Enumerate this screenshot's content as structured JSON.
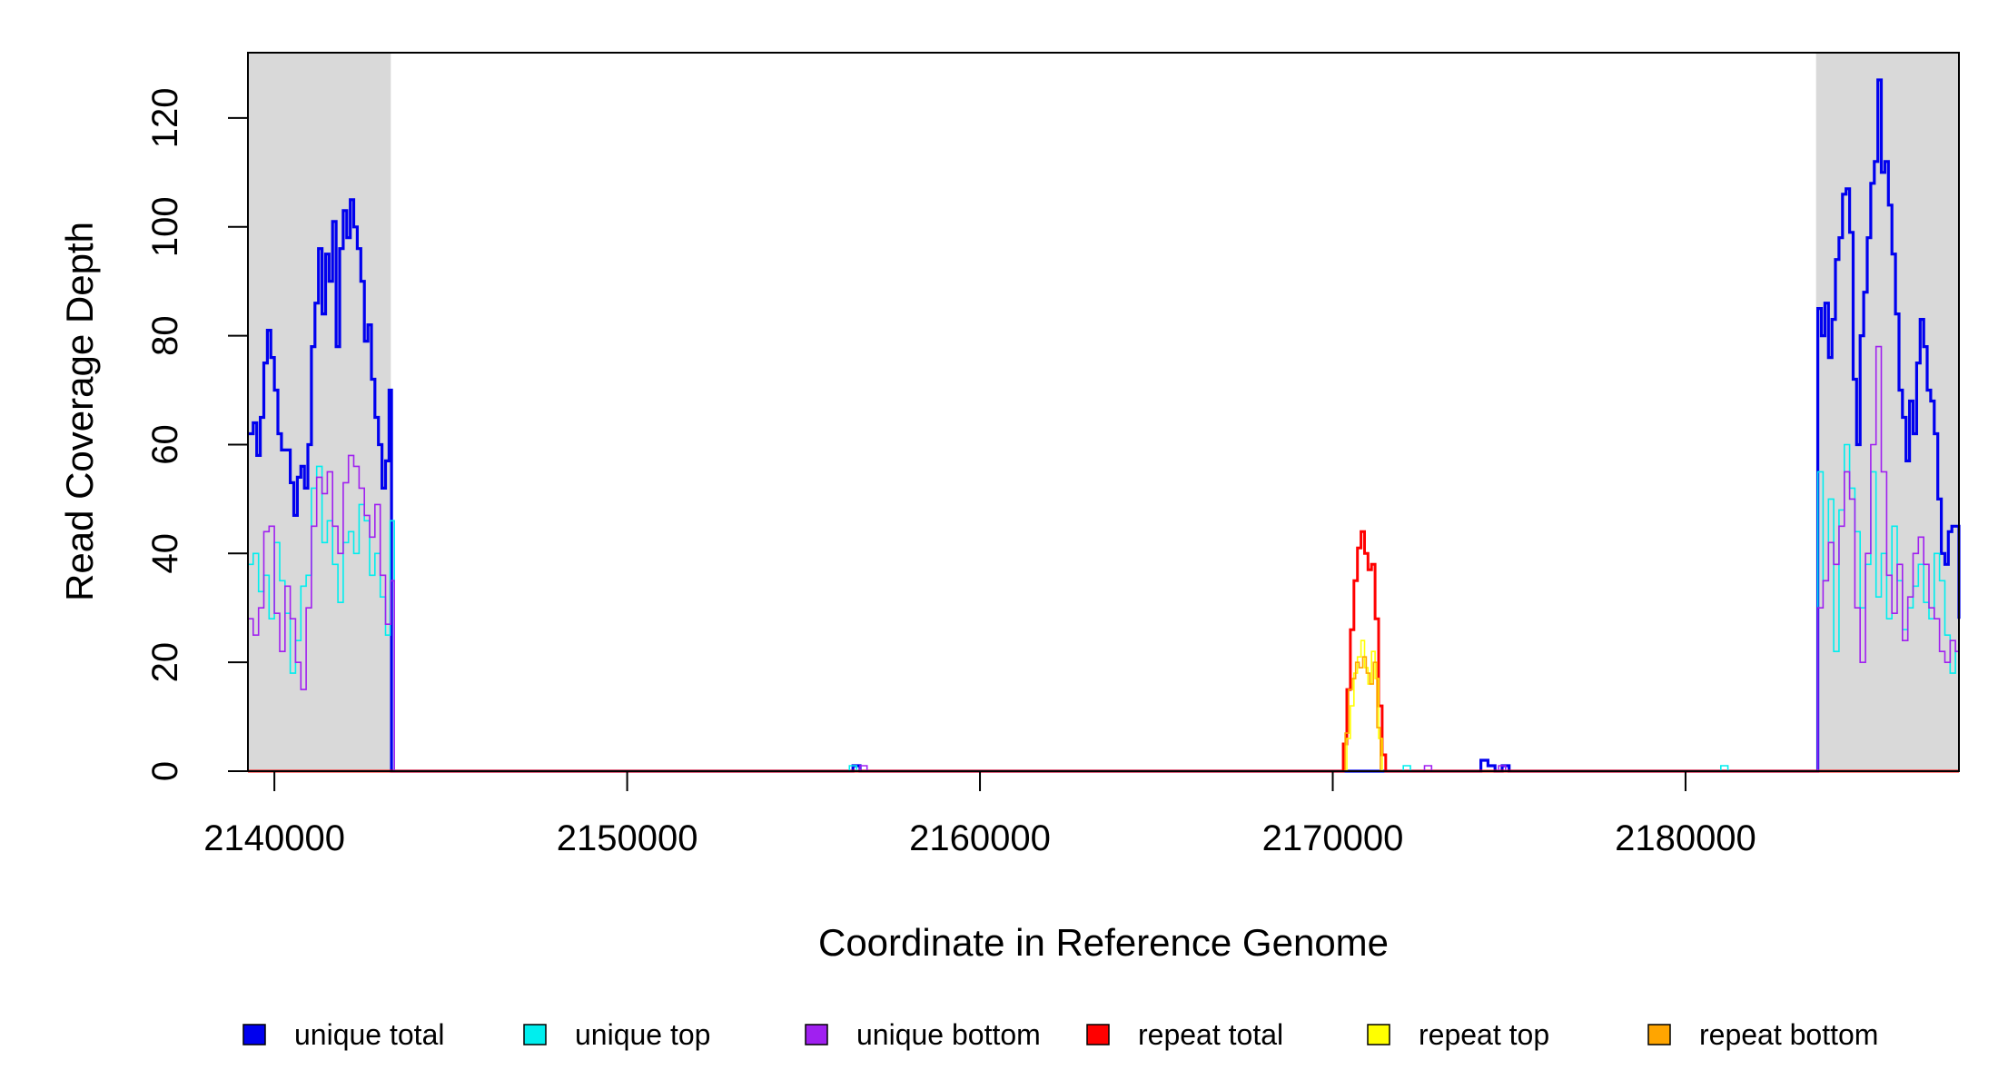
{
  "chart_data": {
    "type": "line",
    "title": "",
    "xlabel": "Coordinate in Reference Genome",
    "ylabel": "Read Coverage Depth",
    "xlim": [
      2139250,
      2187750
    ],
    "ylim": [
      0,
      132
    ],
    "x_ticks": [
      2140000,
      2150000,
      2160000,
      2170000,
      2180000
    ],
    "y_ticks": [
      0,
      20,
      40,
      60,
      80,
      100,
      120
    ],
    "grid": false,
    "legend_position": "bottom",
    "shaded_regions": [
      {
        "from": 2139250,
        "to": 2143300,
        "color": "#d9d9d9"
      },
      {
        "from": 2183700,
        "to": 2187750,
        "color": "#d9d9d9"
      }
    ],
    "series": [
      {
        "name": "unique total",
        "color": "#0000ee",
        "width": 3.2,
        "x": [
          2139250,
          2139400,
          2139500,
          2139600,
          2139700,
          2139800,
          2139900,
          2140000,
          2140100,
          2140200,
          2140300,
          2140450,
          2140550,
          2140650,
          2140750,
          2140850,
          2140950,
          2141050,
          2141150,
          2141250,
          2141350,
          2141450,
          2141550,
          2141650,
          2141750,
          2141850,
          2141950,
          2142050,
          2142150,
          2142250,
          2142350,
          2142450,
          2142550,
          2142650,
          2142750,
          2142850,
          2142950,
          2143050,
          2143150,
          2143250,
          2143320,
          2143400,
          2156200,
          2156400,
          2156600,
          2156800,
          2174000,
          2174200,
          2174400,
          2174600,
          2174800,
          2175000,
          2183600,
          2183750,
          2183850,
          2183950,
          2184050,
          2184150,
          2184250,
          2184350,
          2184450,
          2184550,
          2184650,
          2184750,
          2184850,
          2184950,
          2185050,
          2185150,
          2185250,
          2185350,
          2185450,
          2185550,
          2185650,
          2185750,
          2185850,
          2185950,
          2186050,
          2186150,
          2186250,
          2186350,
          2186450,
          2186550,
          2186650,
          2186750,
          2186850,
          2186950,
          2187050,
          2187150,
          2187250,
          2187350,
          2187450,
          2187550,
          2187750
        ],
        "y": [
          62,
          64,
          58,
          65,
          75,
          81,
          76,
          70,
          62,
          59,
          59,
          53,
          47,
          54,
          56,
          52,
          60,
          78,
          86,
          96,
          84,
          95,
          90,
          101,
          78,
          96,
          103,
          98,
          105,
          100,
          96,
          90,
          79,
          82,
          72,
          65,
          60,
          52,
          57,
          70,
          0,
          0,
          0,
          1,
          0,
          0,
          0,
          2,
          1,
          0,
          1,
          0,
          0,
          85,
          80,
          86,
          76,
          83,
          94,
          98,
          106,
          107,
          99,
          72,
          60,
          80,
          88,
          98,
          108,
          112,
          127,
          110,
          112,
          104,
          95,
          84,
          70,
          65,
          57,
          68,
          62,
          75,
          83,
          78,
          70,
          68,
          62,
          50,
          40,
          38,
          44,
          45,
          28
        ],
        "label": ""
      },
      {
        "name": "unique top",
        "color": "#00eeee",
        "width": 1.6,
        "x": [
          2139250,
          2139400,
          2139550,
          2139700,
          2139850,
          2140000,
          2140150,
          2140300,
          2140450,
          2140600,
          2140750,
          2140900,
          2141050,
          2141200,
          2141350,
          2141500,
          2141650,
          2141800,
          2141950,
          2142100,
          2142250,
          2142400,
          2142550,
          2142700,
          2142850,
          2143000,
          2143150,
          2143280,
          2143400,
          2156300,
          2156500,
          2172000,
          2172200,
          2181000,
          2181200,
          2183600,
          2183750,
          2183900,
          2184050,
          2184200,
          2184350,
          2184500,
          2184650,
          2184800,
          2184950,
          2185100,
          2185250,
          2185400,
          2185550,
          2185700,
          2185850,
          2186000,
          2186150,
          2186300,
          2186450,
          2186600,
          2186750,
          2186900,
          2187050,
          2187200,
          2187350,
          2187500,
          2187650,
          2187750
        ],
        "y": [
          38,
          40,
          33,
          36,
          28,
          42,
          35,
          29,
          18,
          24,
          34,
          36,
          52,
          56,
          42,
          46,
          38,
          31,
          42,
          44,
          40,
          49,
          46,
          36,
          40,
          32,
          25,
          46,
          0,
          1,
          0,
          1,
          0,
          1,
          0,
          0,
          55,
          35,
          50,
          22,
          48,
          60,
          52,
          44,
          30,
          38,
          55,
          32,
          40,
          28,
          45,
          35,
          26,
          30,
          34,
          38,
          31,
          28,
          40,
          35,
          25,
          18,
          22,
          12
        ],
        "label": ""
      },
      {
        "name": "unique bottom",
        "color": "#a020f0",
        "width": 1.6,
        "x": [
          2139250,
          2139400,
          2139550,
          2139700,
          2139850,
          2140000,
          2140150,
          2140300,
          2140450,
          2140600,
          2140750,
          2140900,
          2141050,
          2141200,
          2141350,
          2141500,
          2141650,
          2141800,
          2141950,
          2142100,
          2142250,
          2142400,
          2142550,
          2142700,
          2142850,
          2143000,
          2143150,
          2143300,
          2143400,
          2156600,
          2156800,
          2172600,
          2172800,
          2174700,
          2174900,
          2183600,
          2183750,
          2183900,
          2184050,
          2184200,
          2184350,
          2184500,
          2184650,
          2184800,
          2184950,
          2185100,
          2185250,
          2185400,
          2185550,
          2185700,
          2185850,
          2186000,
          2186150,
          2186300,
          2186450,
          2186600,
          2186750,
          2186900,
          2187050,
          2187200,
          2187350,
          2187500,
          2187650,
          2187750
        ],
        "y": [
          28,
          25,
          30,
          44,
          45,
          29,
          22,
          34,
          28,
          20,
          15,
          30,
          45,
          54,
          51,
          55,
          45,
          40,
          53,
          58,
          56,
          52,
          47,
          43,
          49,
          36,
          27,
          35,
          0,
          1,
          0,
          1,
          0,
          1,
          0,
          0,
          30,
          35,
          42,
          38,
          45,
          55,
          50,
          30,
          20,
          40,
          60,
          78,
          55,
          36,
          29,
          38,
          24,
          32,
          40,
          43,
          38,
          30,
          28,
          22,
          20,
          24,
          22,
          20
        ],
        "label": ""
      },
      {
        "name": "repeat total",
        "color": "#ff0000",
        "width": 3.0,
        "x": [
          2139250,
          2170200,
          2170300,
          2170400,
          2170500,
          2170600,
          2170700,
          2170800,
          2170900,
          2171000,
          2171100,
          2171200,
          2171300,
          2171400,
          2171500,
          2187750
        ],
        "y": [
          0,
          0,
          5,
          15,
          26,
          35,
          41,
          44,
          40,
          37,
          38,
          28,
          12,
          3,
          0,
          0
        ],
        "label": ""
      },
      {
        "name": "repeat top",
        "color": "#ffff00",
        "width": 1.6,
        "x": [
          2139250,
          2170300,
          2170400,
          2170500,
          2170600,
          2170700,
          2170800,
          2170900,
          2171000,
          2171100,
          2171200,
          2171300,
          2171400,
          2187750
        ],
        "y": [
          0,
          0,
          6,
          12,
          18,
          21,
          24,
          19,
          16,
          22,
          17,
          6,
          0,
          0
        ],
        "label": ""
      },
      {
        "name": "repeat bottom",
        "color": "#ffa500",
        "width": 1.6,
        "x": [
          2139250,
          2170250,
          2170350,
          2170450,
          2170550,
          2170650,
          2170750,
          2170850,
          2170950,
          2171050,
          2171150,
          2171250,
          2171350,
          2187750
        ],
        "y": [
          0,
          0,
          7,
          15,
          17,
          20,
          19,
          21,
          18,
          16,
          20,
          8,
          0,
          0
        ],
        "label": ""
      }
    ],
    "legend": [
      {
        "name": "unique total",
        "color": "#0000ee"
      },
      {
        "name": "unique top",
        "color": "#00eeee"
      },
      {
        "name": "unique bottom",
        "color": "#a020f0"
      },
      {
        "name": "repeat total",
        "color": "#ff0000"
      },
      {
        "name": "repeat top",
        "color": "#ffff00"
      },
      {
        "name": "repeat bottom",
        "color": "#ffa500"
      }
    ]
  }
}
